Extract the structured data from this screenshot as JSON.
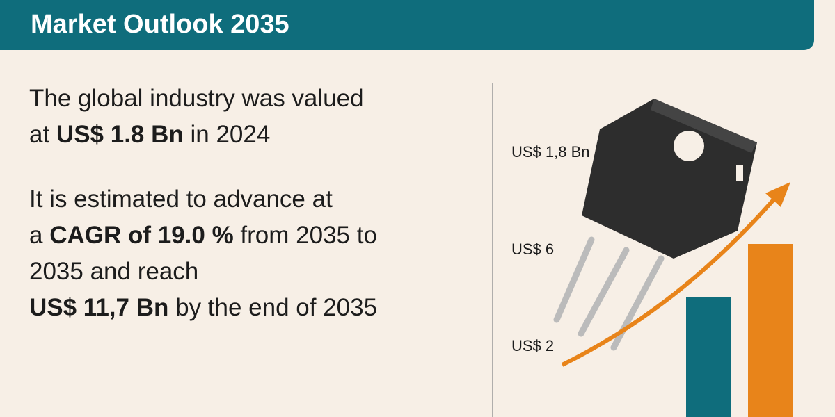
{
  "header": {
    "title": "Market Outlook 2035"
  },
  "paragraphs": [
    {
      "lines": [
        [
          {
            "text": "The global industry was valued"
          }
        ],
        [
          {
            "text": "at "
          },
          {
            "text": "US$ 1.8 Bn",
            "bold": true
          },
          {
            "text": " in 2024"
          }
        ]
      ]
    },
    {
      "lines": [
        [
          {
            "text": "It is estimated to advance at"
          }
        ],
        [
          {
            "text": "a "
          },
          {
            "text": "CAGR of 19.0 %",
            "bold": true
          },
          {
            "text": " from 2035 to"
          }
        ],
        [
          {
            "text": "2035 and reach"
          }
        ],
        [
          {
            "text": "US$ 11,7 Bn",
            "bold": true
          },
          {
            "text": " by the end of 2035"
          }
        ]
      ]
    }
  ],
  "labels": [
    "US$ 1,8 Bn",
    "US$ 6",
    "US$ 2"
  ]
}
